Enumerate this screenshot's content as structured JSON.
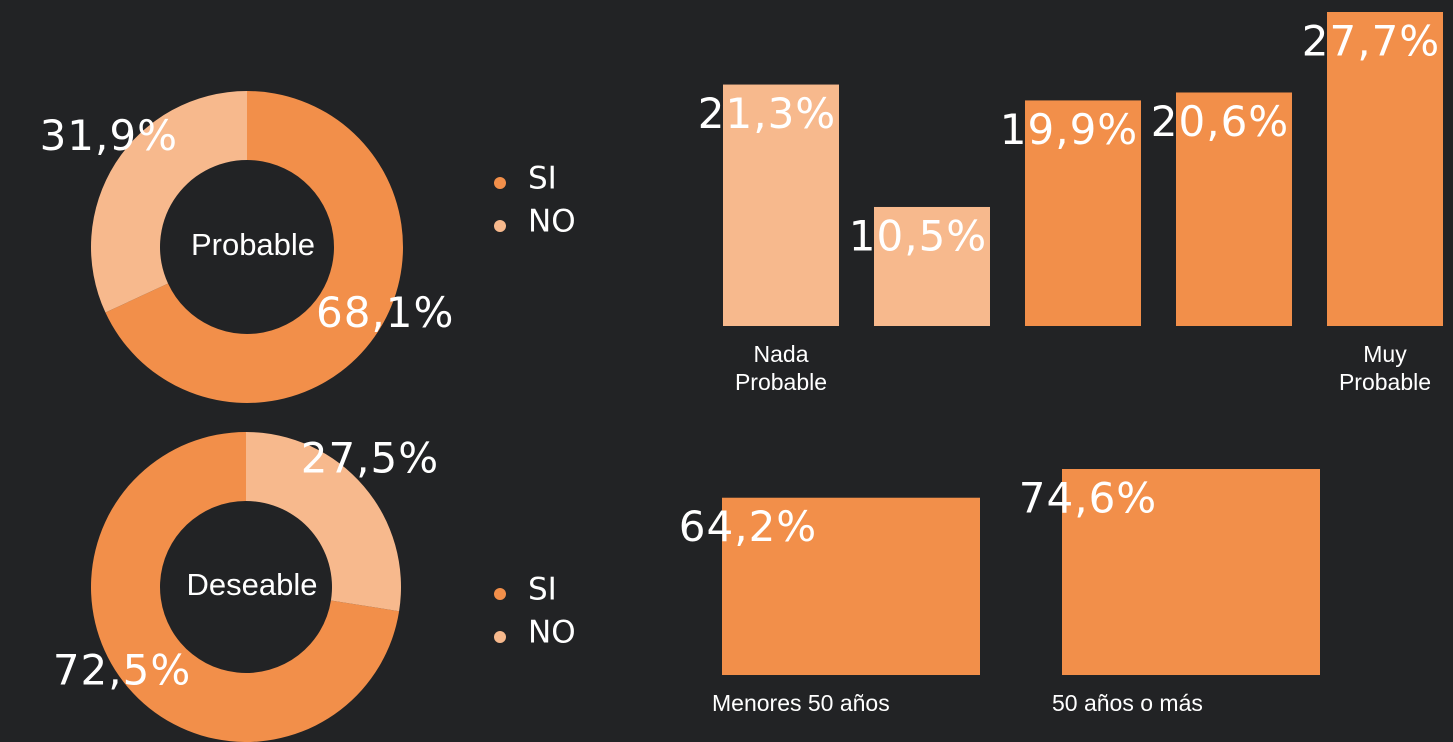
{
  "chart_data": [
    {
      "type": "donut",
      "center_label": "Probable",
      "categories": [
        "SI",
        "NO"
      ],
      "values": [
        68.1,
        31.9
      ],
      "value_labels": [
        "68,1%",
        "31,9%"
      ],
      "colors": [
        "#f28f4a",
        "#f7b98d"
      ],
      "direction": "clockwise",
      "legend": true
    },
    {
      "type": "bar",
      "categories": [
        "Nada Probable",
        null,
        null,
        null,
        "Muy Probable"
      ],
      "values": [
        21.3,
        10.5,
        19.9,
        20.6,
        27.7
      ],
      "value_labels": [
        "21,3%",
        "10,5%",
        "19,9%",
        "20,6%",
        "27,7%"
      ],
      "colors": [
        "#f7b98d",
        "#f7b98d",
        "#f28f4a",
        "#f28f4a",
        "#f28f4a"
      ]
    },
    {
      "type": "donut",
      "center_label": "Deseable",
      "categories": [
        "SI",
        "NO"
      ],
      "values": [
        72.5,
        27.5
      ],
      "value_labels": [
        "72,5%",
        "27,5%"
      ],
      "colors": [
        "#f28f4a",
        "#f7b98d"
      ],
      "direction": "counterclockwise",
      "legend": true
    },
    {
      "type": "bar",
      "categories": [
        "Menores 50 años",
        "50 años o más"
      ],
      "values": [
        64.2,
        74.6
      ],
      "value_labels": [
        "64,2%",
        "74,6%"
      ],
      "colors": [
        "#f28f4a",
        "#f28f4a"
      ]
    }
  ]
}
